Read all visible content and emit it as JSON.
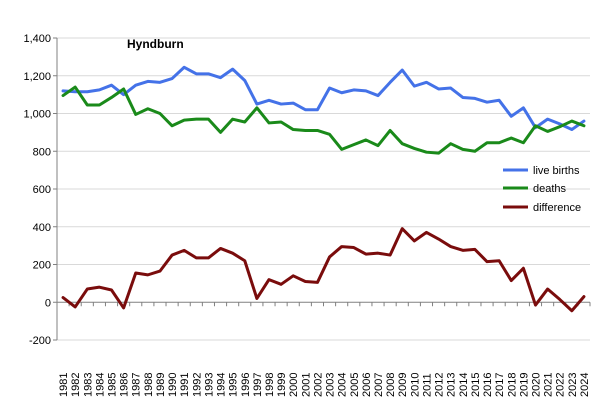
{
  "chart_data": {
    "type": "line",
    "title": "Hyndburn",
    "xlabel": "",
    "ylabel": "",
    "ylim": [
      -200,
      1400
    ],
    "yticks": [
      -200,
      0,
      200,
      400,
      600,
      800,
      1000,
      1200,
      1400
    ],
    "ytick_labels": [
      "-200",
      "0",
      "200",
      "400",
      "600",
      "800",
      "1,000",
      "1,200",
      "1,400"
    ],
    "grid": true,
    "legend_position": "right",
    "x": [
      "1981",
      "1982",
      "1983",
      "1984",
      "1985",
      "1986",
      "1987",
      "1988",
      "1989",
      "1990",
      "1991",
      "1992",
      "1993",
      "1994",
      "1995",
      "1996",
      "1997",
      "1998",
      "1999",
      "2000",
      "2001",
      "2002",
      "2003",
      "2004",
      "2005",
      "2006",
      "2007",
      "2008",
      "2009",
      "2010",
      "2011",
      "2012",
      "2013",
      "2014",
      "2015",
      "2016",
      "2017",
      "2018",
      "2019",
      "2020",
      "2021",
      "2022",
      "2023",
      "2024"
    ],
    "series": [
      {
        "name": "live births",
        "color": "#4472e8",
        "values": [
          1120,
          1115,
          1115,
          1125,
          1150,
          1100,
          1150,
          1170,
          1165,
          1185,
          1245,
          1210,
          1210,
          1190,
          1235,
          1175,
          1050,
          1070,
          1050,
          1055,
          1020,
          1020,
          1135,
          1110,
          1125,
          1120,
          1095,
          1165,
          1230,
          1145,
          1165,
          1130,
          1135,
          1085,
          1080,
          1060,
          1070,
          985,
          1030,
          925,
          970,
          945,
          915,
          960
        ]
      },
      {
        "name": "deaths",
        "color": "#1a8a1a",
        "values": [
          1095,
          1140,
          1045,
          1045,
          1085,
          1130,
          995,
          1025,
          1000,
          935,
          965,
          970,
          970,
          900,
          970,
          955,
          1030,
          950,
          955,
          915,
          910,
          910,
          890,
          810,
          835,
          860,
          830,
          910,
          840,
          815,
          795,
          790,
          840,
          810,
          800,
          845,
          845,
          870,
          845,
          935,
          905,
          930,
          960,
          935
        ]
      },
      {
        "name": "difference",
        "color": "#7a0c0c",
        "values": [
          25,
          -25,
          70,
          80,
          65,
          -30,
          155,
          145,
          165,
          250,
          275,
          235,
          235,
          285,
          260,
          220,
          20,
          120,
          95,
          140,
          110,
          105,
          240,
          295,
          290,
          255,
          260,
          250,
          390,
          325,
          370,
          335,
          295,
          275,
          280,
          215,
          220,
          115,
          180,
          -15,
          70,
          15,
          -45,
          30
        ]
      }
    ]
  }
}
